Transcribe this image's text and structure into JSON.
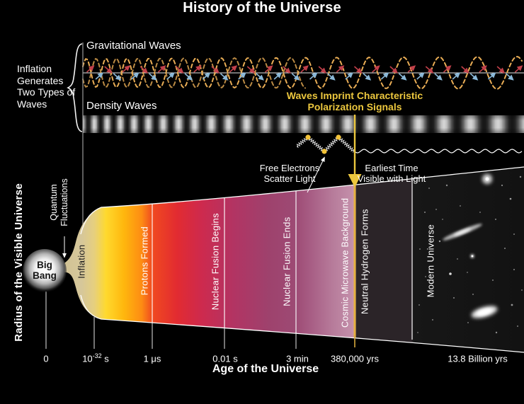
{
  "title": "History of the Universe",
  "left_panel": {
    "inflation_note": "Inflation\nGenerates\nTwo Types of\nWaves",
    "radius_axis_label": "Radius of the Visible Universe"
  },
  "waves_panel": {
    "gravitational_label": "Gravitational Waves",
    "density_label": "Density Waves",
    "polarization_note": "Waves Imprint Characteristic\nPolarization Signals"
  },
  "annotations": {
    "quantum_fluctuations": "Quantum\nFluctuations",
    "big_bang": "Big\nBang",
    "free_electrons": "Free Electrons\nScatter Light",
    "earliest_time": "Earliest Time\nVisible with Light"
  },
  "stages": [
    {
      "label": "Inflation"
    },
    {
      "label": "Protons Formed"
    },
    {
      "label": "Nuclear Fusion Begins"
    },
    {
      "label": "Nuclear Fusion Ends"
    },
    {
      "label": "Cosmic Microwave Background"
    },
    {
      "label": "Neutral Hydrogen Forms"
    },
    {
      "label": "Modern Universe"
    }
  ],
  "x_axis": {
    "label": "Age of the Universe",
    "ticks": [
      {
        "pre": "0",
        "sup": "",
        "post": ""
      },
      {
        "pre": "10",
        "sup": "-32",
        "post": " s"
      },
      {
        "pre": "1 μs",
        "sup": "",
        "post": ""
      },
      {
        "pre": "0.01 s",
        "sup": "",
        "post": ""
      },
      {
        "pre": "3 min",
        "sup": "",
        "post": ""
      },
      {
        "pre": "380,000 yrs",
        "sup": "",
        "post": ""
      },
      {
        "pre": "13.8 Billion yrs",
        "sup": "",
        "post": ""
      }
    ]
  },
  "colors": {
    "background": "#000000",
    "accent_yellow": "#ecc73e",
    "wave_orange": "#e9ad55",
    "arrow_red": "#c2404a",
    "arrow_blue": "#8ab8d8",
    "photon_dot_yellow": "#f2c238",
    "cone_yellow": "#ffd92e",
    "cone_red": "#e22b31",
    "cone_purple": "#9e426d",
    "cone_pink": "#c38ea9",
    "white": "#ffffff"
  }
}
